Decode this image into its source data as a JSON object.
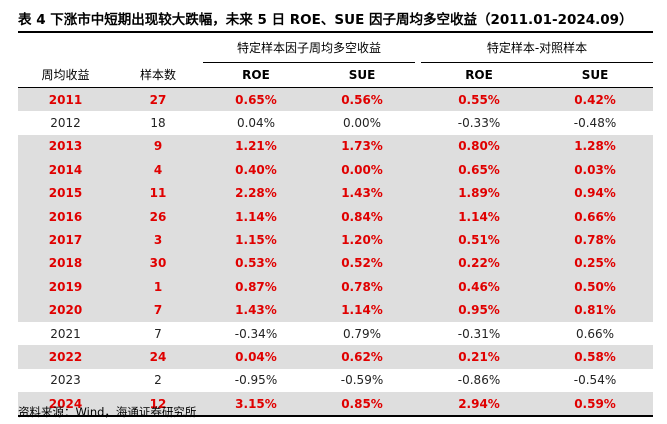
{
  "title": "表 4 下涨市中短期出现较大跌幅，未来 5 日 ROE、SUE 因子周均多空收益（2011.01-2024.09）",
  "groups": {
    "left": "特定样本因子周均多空收益",
    "right": "特定样本-对照样本"
  },
  "columns": {
    "year": "周均收益",
    "count": "样本数",
    "roe1": "ROE",
    "sue1": "SUE",
    "roe2": "ROE",
    "sue2": "SUE"
  },
  "rows": [
    {
      "year": "2011",
      "count": "27",
      "roe1": "0.65%",
      "sue1": "0.56%",
      "roe2": "0.55%",
      "sue2": "0.42%",
      "highlight": true
    },
    {
      "year": "2012",
      "count": "18",
      "roe1": "0.04%",
      "sue1": "0.00%",
      "roe2": "-0.33%",
      "sue2": "-0.48%",
      "highlight": false
    },
    {
      "year": "2013",
      "count": "9",
      "roe1": "1.21%",
      "sue1": "1.73%",
      "roe2": "0.80%",
      "sue2": "1.28%",
      "highlight": true
    },
    {
      "year": "2014",
      "count": "4",
      "roe1": "0.40%",
      "sue1": "0.00%",
      "roe2": "0.65%",
      "sue2": "0.03%",
      "highlight": true
    },
    {
      "year": "2015",
      "count": "11",
      "roe1": "2.28%",
      "sue1": "1.43%",
      "roe2": "1.89%",
      "sue2": "0.94%",
      "highlight": true
    },
    {
      "year": "2016",
      "count": "26",
      "roe1": "1.14%",
      "sue1": "0.84%",
      "roe2": "1.14%",
      "sue2": "0.66%",
      "highlight": true
    },
    {
      "year": "2017",
      "count": "3",
      "roe1": "1.15%",
      "sue1": "1.20%",
      "roe2": "0.51%",
      "sue2": "0.78%",
      "highlight": true
    },
    {
      "year": "2018",
      "count": "30",
      "roe1": "0.53%",
      "sue1": "0.52%",
      "roe2": "0.22%",
      "sue2": "0.25%",
      "highlight": true
    },
    {
      "year": "2019",
      "count": "1",
      "roe1": "0.87%",
      "sue1": "0.78%",
      "roe2": "0.46%",
      "sue2": "0.50%",
      "highlight": true
    },
    {
      "year": "2020",
      "count": "7",
      "roe1": "1.43%",
      "sue1": "1.14%",
      "roe2": "0.95%",
      "sue2": "0.81%",
      "highlight": true
    },
    {
      "year": "2021",
      "count": "7",
      "roe1": "-0.34%",
      "sue1": "0.79%",
      "roe2": "-0.31%",
      "sue2": "0.66%",
      "highlight": false
    },
    {
      "year": "2022",
      "count": "24",
      "roe1": "0.04%",
      "sue1": "0.62%",
      "roe2": "0.21%",
      "sue2": "0.58%",
      "highlight": true
    },
    {
      "year": "2023",
      "count": "2",
      "roe1": "-0.95%",
      "sue1": "-0.59%",
      "roe2": "-0.86%",
      "sue2": "-0.54%",
      "highlight": false
    },
    {
      "year": "2024",
      "count": "12",
      "roe1": "3.15%",
      "sue1": "0.85%",
      "roe2": "2.94%",
      "sue2": "0.59%",
      "highlight": true
    }
  ],
  "source": "资料来源：Wind，海通证券研究所",
  "colors": {
    "highlight_text": "#e00000",
    "highlight_bg": "#dedede"
  }
}
